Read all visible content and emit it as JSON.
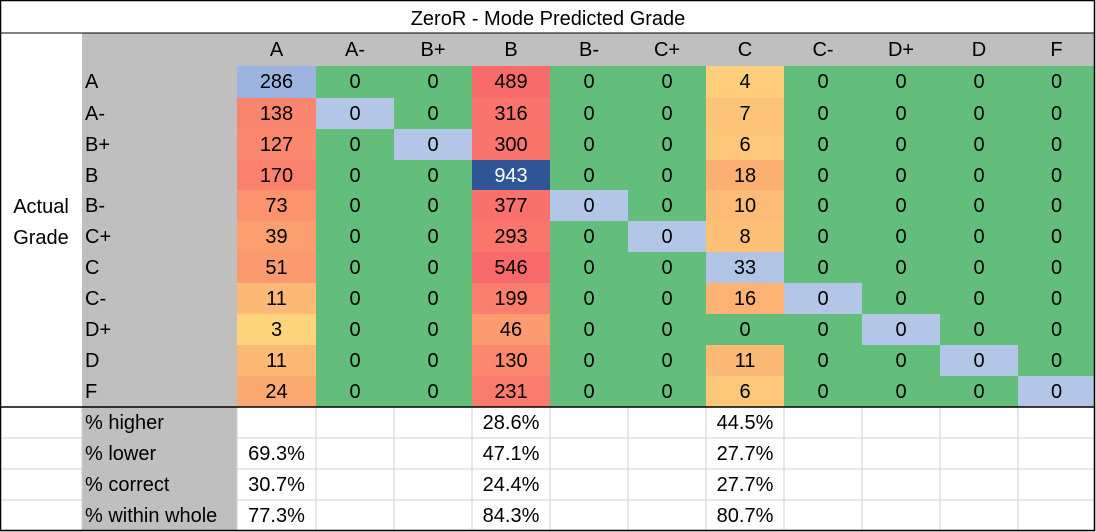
{
  "chart_data": {
    "type": "heatmap",
    "title": "ZeroR - Mode Predicted Grade",
    "ylabel": "Actual Grade",
    "columns": [
      "A",
      "A-",
      "B+",
      "B",
      "B-",
      "C+",
      "C",
      "C-",
      "D+",
      "D",
      "F"
    ],
    "rows": [
      "A",
      "A-",
      "B+",
      "B",
      "B-",
      "C+",
      "C",
      "C-",
      "D+",
      "D",
      "F"
    ],
    "matrix": [
      [
        286,
        0,
        0,
        489,
        0,
        0,
        4,
        0,
        0,
        0,
        0
      ],
      [
        138,
        0,
        0,
        316,
        0,
        0,
        7,
        0,
        0,
        0,
        0
      ],
      [
        127,
        0,
        0,
        300,
        0,
        0,
        6,
        0,
        0,
        0,
        0
      ],
      [
        170,
        0,
        0,
        943,
        0,
        0,
        18,
        0,
        0,
        0,
        0
      ],
      [
        73,
        0,
        0,
        377,
        0,
        0,
        10,
        0,
        0,
        0,
        0
      ],
      [
        39,
        0,
        0,
        293,
        0,
        0,
        8,
        0,
        0,
        0,
        0
      ],
      [
        51,
        0,
        0,
        546,
        0,
        0,
        33,
        0,
        0,
        0,
        0
      ],
      [
        11,
        0,
        0,
        199,
        0,
        0,
        16,
        0,
        0,
        0,
        0
      ],
      [
        3,
        0,
        0,
        46,
        0,
        0,
        0,
        0,
        0,
        0,
        0
      ],
      [
        11,
        0,
        0,
        130,
        0,
        0,
        11,
        0,
        0,
        0,
        0
      ],
      [
        24,
        0,
        0,
        231,
        0,
        0,
        6,
        0,
        0,
        0,
        0
      ]
    ],
    "colors": {
      "zero": "#63be7b",
      "diagonal": "#b4c6e7",
      "max_diagonal": "#2f5597",
      "low": "#ffeb84",
      "mid": "#fcaa71",
      "high": "#f8696b",
      "label_bg": "#bfbfbf",
      "border": "#000000",
      "grid": "#d0d0d0"
    },
    "summary": {
      "labels": [
        "% higher",
        "% lower",
        "% correct",
        "% within whole"
      ],
      "values": [
        [
          "",
          "",
          "",
          "28.6%",
          "",
          "",
          "44.5%",
          "",
          "",
          "",
          ""
        ],
        [
          "69.3%",
          "",
          "",
          "47.1%",
          "",
          "",
          "27.7%",
          "",
          "",
          "",
          ""
        ],
        [
          "30.7%",
          "",
          "",
          "24.4%",
          "",
          "",
          "27.7%",
          "",
          "",
          "",
          ""
        ],
        [
          "77.3%",
          "",
          "",
          "84.3%",
          "",
          "",
          "80.7%",
          "",
          "",
          "",
          ""
        ]
      ]
    }
  }
}
